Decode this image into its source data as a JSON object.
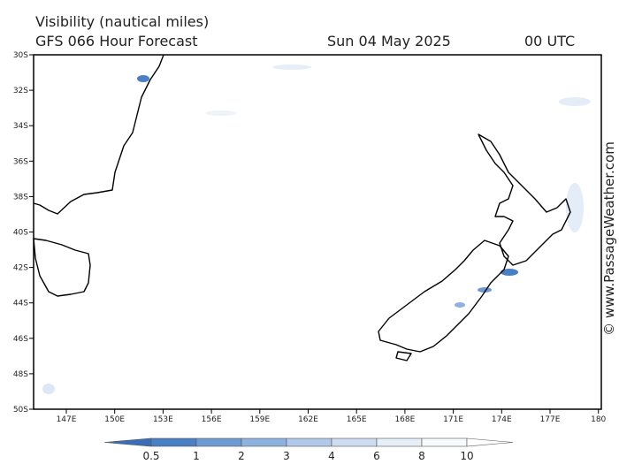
{
  "header": {
    "title": "Visibility (nautical miles)",
    "subtitle": "GFS 066 Hour Forecast",
    "date": "Sun 04 May 2025",
    "time": "00 UTC"
  },
  "map": {
    "lat_labels": [
      "30S",
      "32S",
      "34S",
      "36S",
      "38S",
      "40S",
      "42S",
      "44S",
      "46S",
      "48S",
      "50S"
    ],
    "lon_labels": [
      "147E",
      "150E",
      "153E",
      "156E",
      "159E",
      "162E",
      "165E",
      "168E",
      "171E",
      "174E",
      "177E",
      "180"
    ],
    "watermark": "© www.PassageWeather.com"
  },
  "colorbar": {
    "labels": [
      "0.5",
      "1",
      "2",
      "3",
      "4",
      "6",
      "8",
      "10"
    ]
  }
}
